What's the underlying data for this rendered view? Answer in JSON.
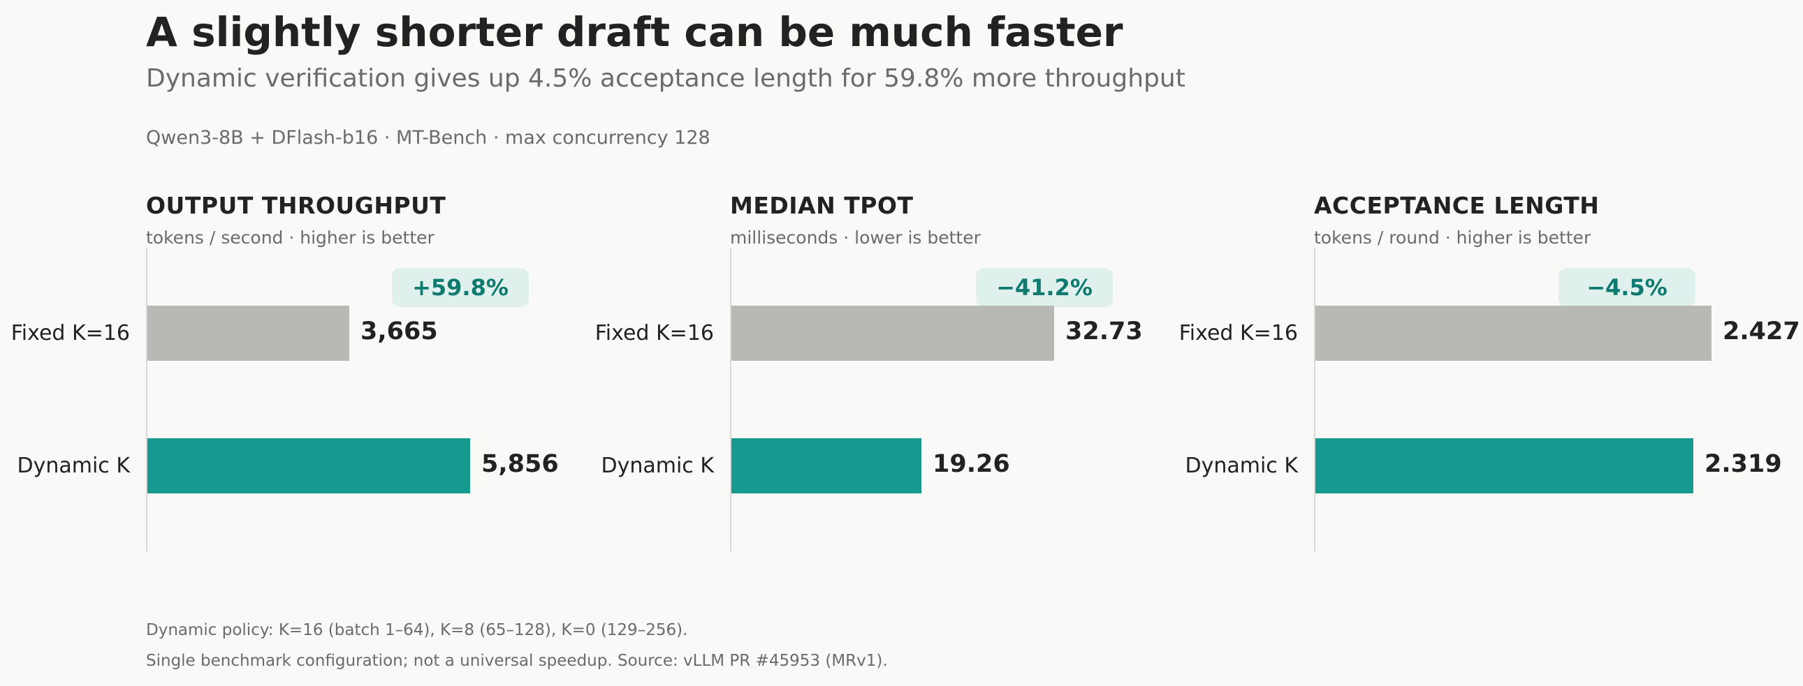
{
  "title": "A slightly shorter draft can be much faster",
  "subtitle": "Dynamic verification gives up 4.5% acceptance length for 59.8% more throughput",
  "context": "Qwen3-8B + DFlash-b16  ·  MT-Bench  ·  max concurrency 128",
  "colors": {
    "baseline": "#b8b9b4",
    "accent": "#169a8f",
    "badge_bg": "#e0f0ed",
    "badge_text": "#0f7a70"
  },
  "chart_data": [
    {
      "type": "bar",
      "orientation": "horizontal",
      "title": "OUTPUT THROUGHPUT",
      "subtitle": "tokens / second  ·  higher is better",
      "categories": [
        "Fixed K=16",
        "Dynamic K"
      ],
      "values": [
        3665,
        5856
      ],
      "value_labels": [
        "3,665",
        "5,856"
      ],
      "badge": "+59.8%",
      "xlim": [
        0,
        7600
      ]
    },
    {
      "type": "bar",
      "orientation": "horizontal",
      "title": "MEDIAN TPOT",
      "subtitle": "milliseconds  ·  lower is better",
      "categories": [
        "Fixed K=16",
        "Dynamic K"
      ],
      "values": [
        32.73,
        19.26
      ],
      "value_labels": [
        "32.73",
        "19.26"
      ],
      "badge": "−41.2%",
      "xlim": [
        0,
        42.5
      ]
    },
    {
      "type": "bar",
      "orientation": "horizontal",
      "title": "ACCEPTANCE LENGTH",
      "subtitle": "tokens / round  ·  higher is better",
      "categories": [
        "Fixed K=16",
        "Dynamic K"
      ],
      "values": [
        2.427,
        2.319
      ],
      "value_labels": [
        "2.427",
        "2.319"
      ],
      "badge": "−4.5%",
      "xlim": [
        0,
        2.57
      ]
    }
  ],
  "footnotes": [
    "Dynamic policy: K=16 (batch 1–64), K=8 (65–128), K=0 (129–256).",
    "Single benchmark configuration; not a universal speedup. Source: vLLM PR #45953 (MRv1)."
  ]
}
